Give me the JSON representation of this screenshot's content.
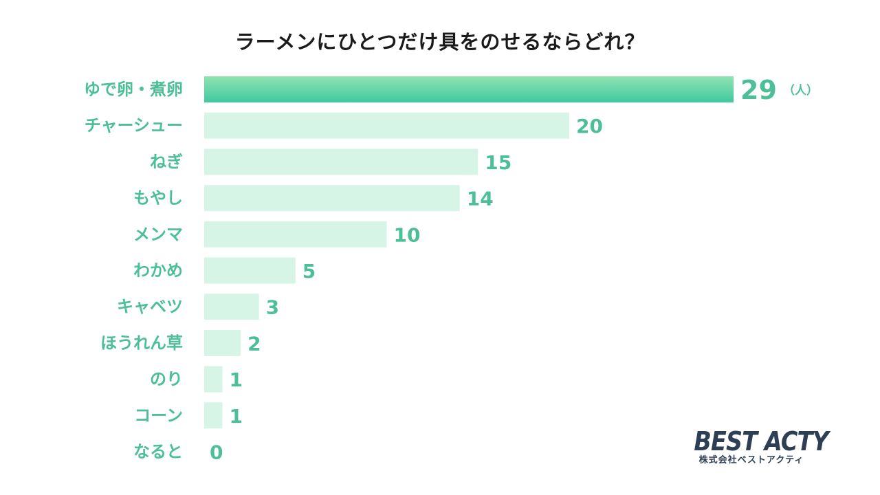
{
  "chart_data": {
    "type": "bar",
    "orientation": "horizontal",
    "title": "ラーメンにひとつだけ具をのせるならどれ？",
    "unit": "（人）",
    "categories": [
      "ゆで卵・煮卵",
      "チャーシュー",
      "ねぎ",
      "もやし",
      "メンマ",
      "わかめ",
      "キャベツ",
      "ほうれん草",
      "のり",
      "コーン",
      "なると"
    ],
    "values": [
      29,
      20,
      15,
      14,
      10,
      5,
      3,
      2,
      1,
      1,
      0
    ],
    "xlim": [
      0,
      29
    ],
    "grid": false,
    "legend": "none"
  },
  "colors": {
    "bar_top_start": "#8fe3b2",
    "bar_top_end": "#3fc99f",
    "bar_default": "#d6f5e6",
    "label": "#4cbf96",
    "title": "#1a1a1a",
    "logo": "#2d3e55"
  },
  "logo": {
    "main": "BEST ACTY",
    "sub": "株式会社ベストアクティ"
  }
}
